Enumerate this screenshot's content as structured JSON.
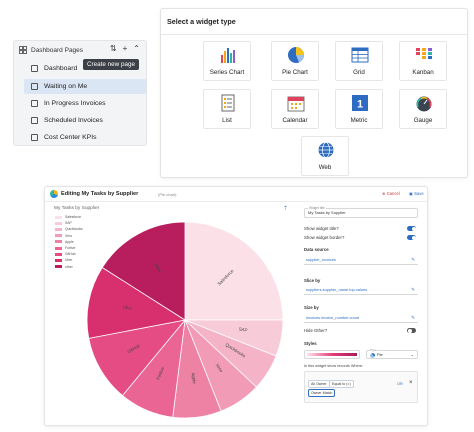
{
  "sidebar": {
    "title": "Dashboard Pages",
    "items": [
      {
        "label": "Dashboard",
        "active": false
      },
      {
        "label": "Waiting on Me",
        "active": true
      },
      {
        "label": "In Progress Invoices",
        "active": false
      },
      {
        "label": "Scheduled Invoices",
        "active": false
      },
      {
        "label": "Cost Center KPIs",
        "active": false
      }
    ],
    "tooltip": "Create new page"
  },
  "picker": {
    "title": "Select a widget type",
    "widgets": [
      {
        "label": "Series Chart",
        "icon": "series-chart-icon"
      },
      {
        "label": "Pie Chart",
        "icon": "pie-chart-icon"
      },
      {
        "label": "Grid",
        "icon": "grid-icon"
      },
      {
        "label": "Kanban",
        "icon": "kanban-icon"
      },
      {
        "label": "List",
        "icon": "list-icon"
      },
      {
        "label": "Calendar",
        "icon": "calendar-icon"
      },
      {
        "label": "Metric",
        "icon": "metric-icon",
        "value": "1"
      },
      {
        "label": "Gauge",
        "icon": "gauge-icon"
      },
      {
        "label": "Web",
        "icon": "web-icon"
      }
    ]
  },
  "editor": {
    "title": "Editing My Tasks by Supplier",
    "subtitle": "(Pie chart)",
    "cancel": "Cancel",
    "save": "Save",
    "chart_title": "My Tasks by Supplier",
    "panel": {
      "title_field_label": "Widget title",
      "title_value": "My Tasks by Supplier",
      "show_title": "Show widget title?",
      "show_border": "Show widget border?",
      "data_source_label": "Data source",
      "data_source": "supplier_invoices",
      "slice_by_label": "Slice by",
      "slice_by": "suppliers.supplier_name.top-values",
      "size_by_label": "Size by",
      "size_by": "invoices.invoice_number.count",
      "hide_other": "Hide Other?",
      "styles_label": "Styles",
      "type_label": "Type",
      "type_value": "Pie",
      "filter_note": "In this widget show records Where:",
      "chip_1": "All Owner",
      "chip_2": "Equal to (=)",
      "chip_3": "Owner Match",
      "or_label": "OR",
      "add_label": "AND"
    }
  },
  "colors": {
    "accent": "#2d6cc0",
    "cancel": "#d03838"
  },
  "chart_data": {
    "type": "pie",
    "title": "My Tasks by Supplier",
    "legend_position": "top-left",
    "series": [
      {
        "name": "Salesforce",
        "value": 25,
        "color": "#fbe0e8"
      },
      {
        "name": "SAP",
        "value": 6,
        "color": "#f8cbd8"
      },
      {
        "name": "Quickbooks",
        "value": 6,
        "color": "#f5b3c7"
      },
      {
        "name": "Xero",
        "value": 7,
        "color": "#f29bb7"
      },
      {
        "name": "Apple",
        "value": 8,
        "color": "#ee82a5"
      },
      {
        "name": "Fortive",
        "value": 9,
        "color": "#ea6593"
      },
      {
        "name": "GitHub",
        "value": 11,
        "color": "#e64c84"
      },
      {
        "name": "Uber",
        "value": 12,
        "color": "#d8306f"
      },
      {
        "name": "other",
        "value": 16,
        "color": "#b81e5d"
      }
    ]
  }
}
